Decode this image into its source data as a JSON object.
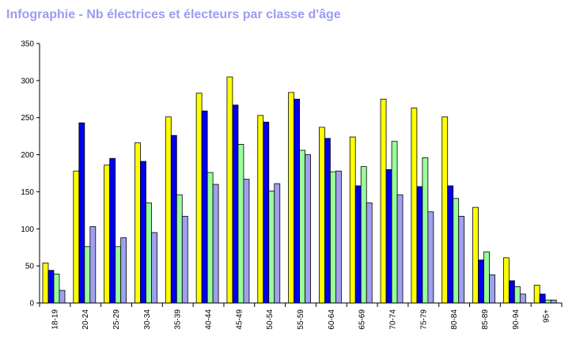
{
  "chart_data": {
    "type": "bar",
    "title": "Infographie - Nb électrices et électeurs par classe d'âge",
    "xlabel": "",
    "ylabel": "",
    "ylim": [
      0,
      350
    ],
    "yticks": [
      0,
      50,
      100,
      150,
      200,
      250,
      300,
      350
    ],
    "grid": false,
    "legend": "none",
    "categories": [
      "18-19",
      "20-24",
      "25-29",
      "30-34",
      "35-39",
      "40-44",
      "45-49",
      "50-54",
      "55-59",
      "60-64",
      "65-69",
      "70-74",
      "75-79",
      "80-84",
      "85-89",
      "90-94",
      "95+"
    ],
    "series": [
      {
        "color": "#ffff00",
        "values": [
          54,
          178,
          186,
          216,
          251,
          283,
          305,
          253,
          284,
          237,
          224,
          275,
          263,
          251,
          129,
          61,
          24
        ]
      },
      {
        "color": "#0000ee",
        "values": [
          44,
          243,
          195,
          191,
          226,
          259,
          267,
          244,
          275,
          222,
          158,
          180,
          157,
          158,
          58,
          30,
          12
        ]
      },
      {
        "color": "#99ff99",
        "values": [
          39,
          76,
          76,
          135,
          146,
          176,
          214,
          151,
          206,
          177,
          184,
          218,
          196,
          141,
          69,
          22,
          4
        ]
      },
      {
        "color": "#a0a0f0",
        "values": [
          17,
          103,
          88,
          95,
          117,
          160,
          167,
          161,
          200,
          178,
          135,
          146,
          123,
          117,
          38,
          12,
          4
        ]
      }
    ]
  }
}
